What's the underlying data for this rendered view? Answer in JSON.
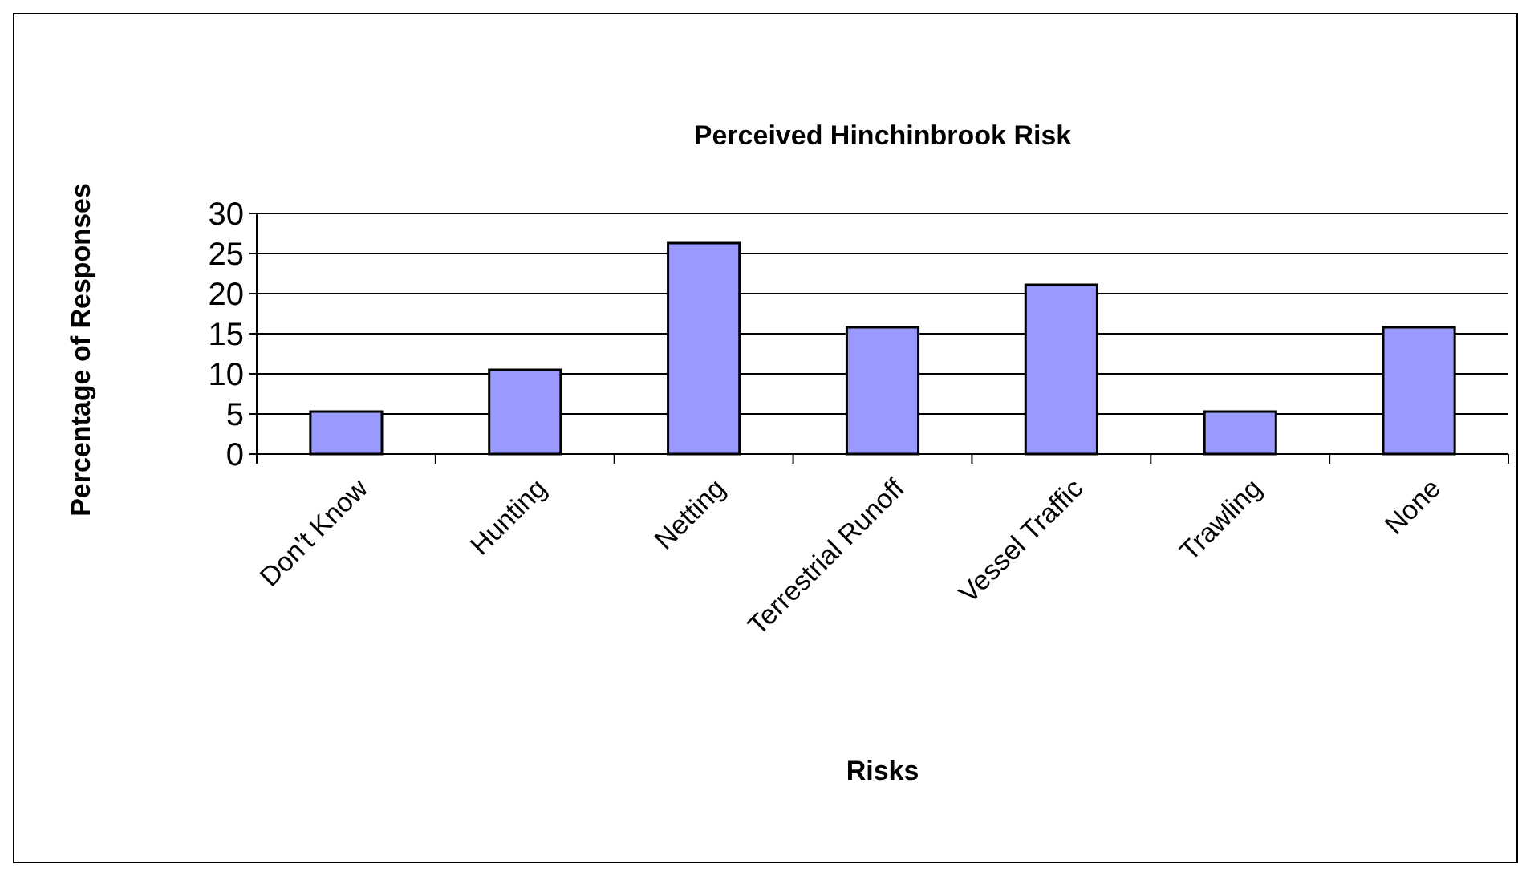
{
  "chart_data": {
    "type": "bar",
    "title": "Perceived Hinchinbrook Risk",
    "xlabel": "Risks",
    "ylabel": "Percentage of Responses",
    "categories": [
      "Don't Know",
      "Hunting",
      "Netting",
      "Terrestrial Runoff",
      "Vessel Traffic",
      "Trawling",
      "None"
    ],
    "values": [
      5.3,
      10.5,
      26.3,
      15.8,
      21.1,
      5.3,
      15.8
    ],
    "color": "#9999ff",
    "ylim": [
      0,
      30
    ],
    "yticks": [
      0,
      5,
      10,
      15,
      20,
      25,
      30
    ],
    "grid": "y"
  }
}
